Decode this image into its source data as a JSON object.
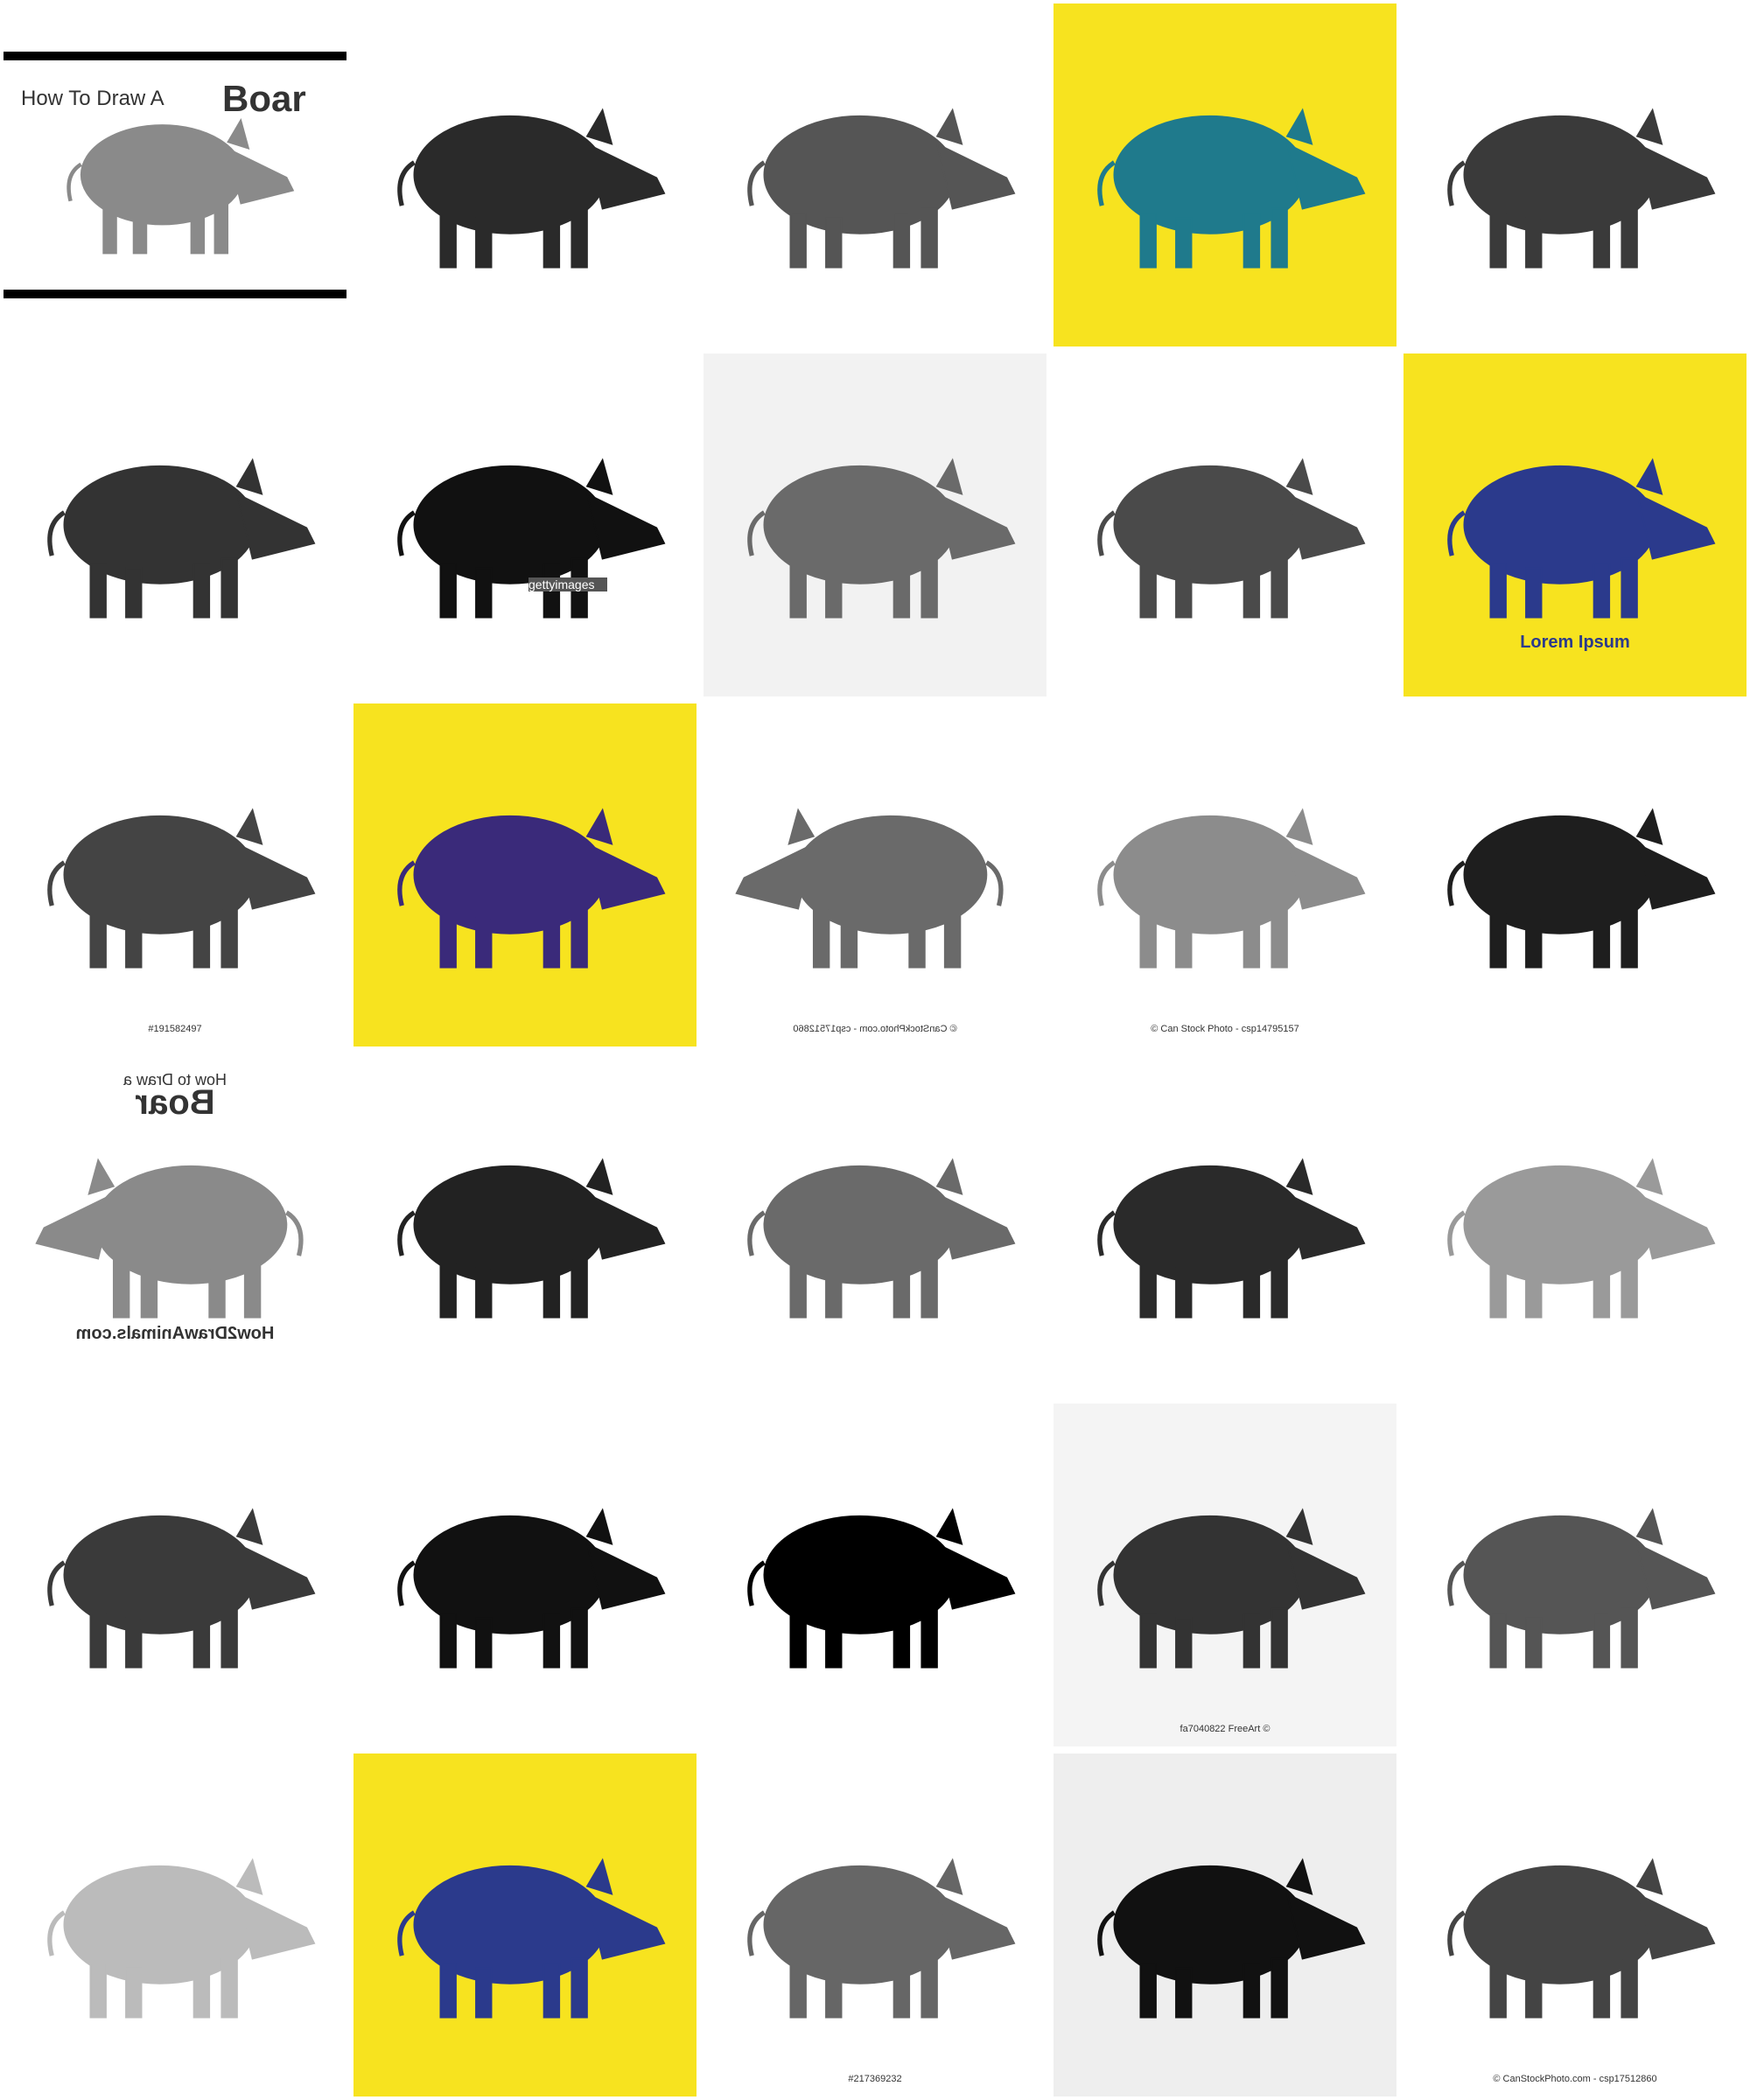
{
  "tiles": [
    {
      "background": "#ffffff",
      "ink": "#8a8a8a",
      "captions": [
        "How To Draw A",
        "Boar"
      ]
    },
    {
      "background": "#ffffff",
      "ink": "#2a2a2a"
    },
    {
      "background": "#ffffff",
      "ink": "#555555"
    },
    {
      "background": "#f7e31f",
      "ink": "#1f7a8c"
    },
    {
      "background": "#ffffff",
      "ink": "#3a3a3a"
    },
    {
      "background": "#ffffff",
      "ink": "#333333"
    },
    {
      "background": "#ffffff",
      "ink": "#111111",
      "captions": [
        "gettyimages"
      ]
    },
    {
      "background": "#f2f2f2",
      "ink": "#6a6a6a"
    },
    {
      "background": "#ffffff",
      "ink": "#4a4a4a"
    },
    {
      "background": "#f7e31f",
      "ink": "#2b3a8c",
      "captions": [
        "Lorem Ipsum"
      ]
    },
    {
      "background": "#ffffff",
      "ink": "#444444",
      "captions": [
        "#191582497"
      ]
    },
    {
      "background": "#f7e31f",
      "ink": "#3a2a7a"
    },
    {
      "background": "#ffffff",
      "ink": "#6a6a6a",
      "mirrored": true,
      "captions": [
        "© CanStockPhoto.com - csp17512860"
      ]
    },
    {
      "background": "#ffffff",
      "ink": "#8c8c8c",
      "captions": [
        "© Can Stock Photo - csp14795157"
      ]
    },
    {
      "background": "#ffffff",
      "ink": "#1e1e1e"
    },
    {
      "background": "#ffffff",
      "ink": "#8a8a8a",
      "mirrored": true,
      "captions": [
        "How to Draw a",
        "Boar",
        "How2DrawAnimals.com"
      ]
    },
    {
      "background": "#ffffff",
      "ink": "#222222"
    },
    {
      "background": "#ffffff",
      "ink": "#6a6a6a"
    },
    {
      "background": "#ffffff",
      "ink": "#2a2a2a"
    },
    {
      "background": "#ffffff",
      "ink": "#9a9a9a"
    },
    {
      "background": "#ffffff",
      "ink": "#3a3a3a"
    },
    {
      "background": "#ffffff",
      "ink": "#111111"
    },
    {
      "background": "#ffffff",
      "ink": "#000000"
    },
    {
      "background": "#f4f4f4",
      "ink": "#333333",
      "captions": [
        "fa7040822 FreeArt ©"
      ]
    },
    {
      "background": "#ffffff",
      "ink": "#555555"
    },
    {
      "background": "#ffffff",
      "ink": "#bbbbbb"
    },
    {
      "background": "#f7e31f",
      "ink": "#2b3a8c"
    },
    {
      "background": "#ffffff",
      "ink": "#666666",
      "captions": [
        "#217369232"
      ]
    },
    {
      "background": "#eeeeee",
      "ink": "#111111"
    },
    {
      "background": "#ffffff",
      "ink": "#444444",
      "captions": [
        "© CanStockPhoto.com - csp17512860"
      ]
    }
  ]
}
